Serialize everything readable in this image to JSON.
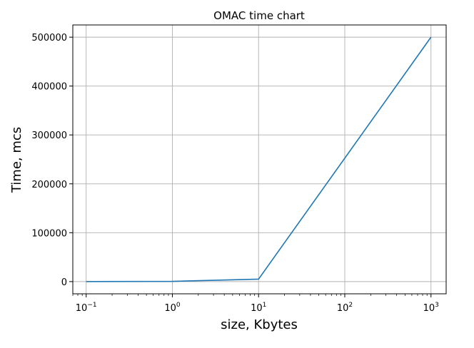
{
  "chart_data": {
    "type": "line",
    "title": "OMAC time chart",
    "xlabel": "size, Kbytes",
    "ylabel": "Time, mcs",
    "xscale": "log",
    "xlim": [
      0.07,
      1500
    ],
    "ylim": [
      -25000,
      525000
    ],
    "grid": true,
    "color": "#1f77b4",
    "x_ticks": [
      {
        "value": 0.1,
        "base": "10",
        "exp": "−1"
      },
      {
        "value": 1,
        "base": "10",
        "exp": "0"
      },
      {
        "value": 10,
        "base": "10",
        "exp": "1"
      },
      {
        "value": 100,
        "base": "10",
        "exp": "2"
      },
      {
        "value": 1000,
        "base": "10",
        "exp": "3"
      }
    ],
    "y_ticks": [
      {
        "value": 0,
        "label": "0"
      },
      {
        "value": 100000,
        "label": "100000"
      },
      {
        "value": 200000,
        "label": "200000"
      },
      {
        "value": 300000,
        "label": "300000"
      },
      {
        "value": 400000,
        "label": "400000"
      },
      {
        "value": 500000,
        "label": "500000"
      }
    ],
    "series": [
      {
        "x": [
          0.1,
          1,
          10,
          1000
        ],
        "y": [
          50,
          500,
          5000,
          500000
        ]
      }
    ]
  }
}
